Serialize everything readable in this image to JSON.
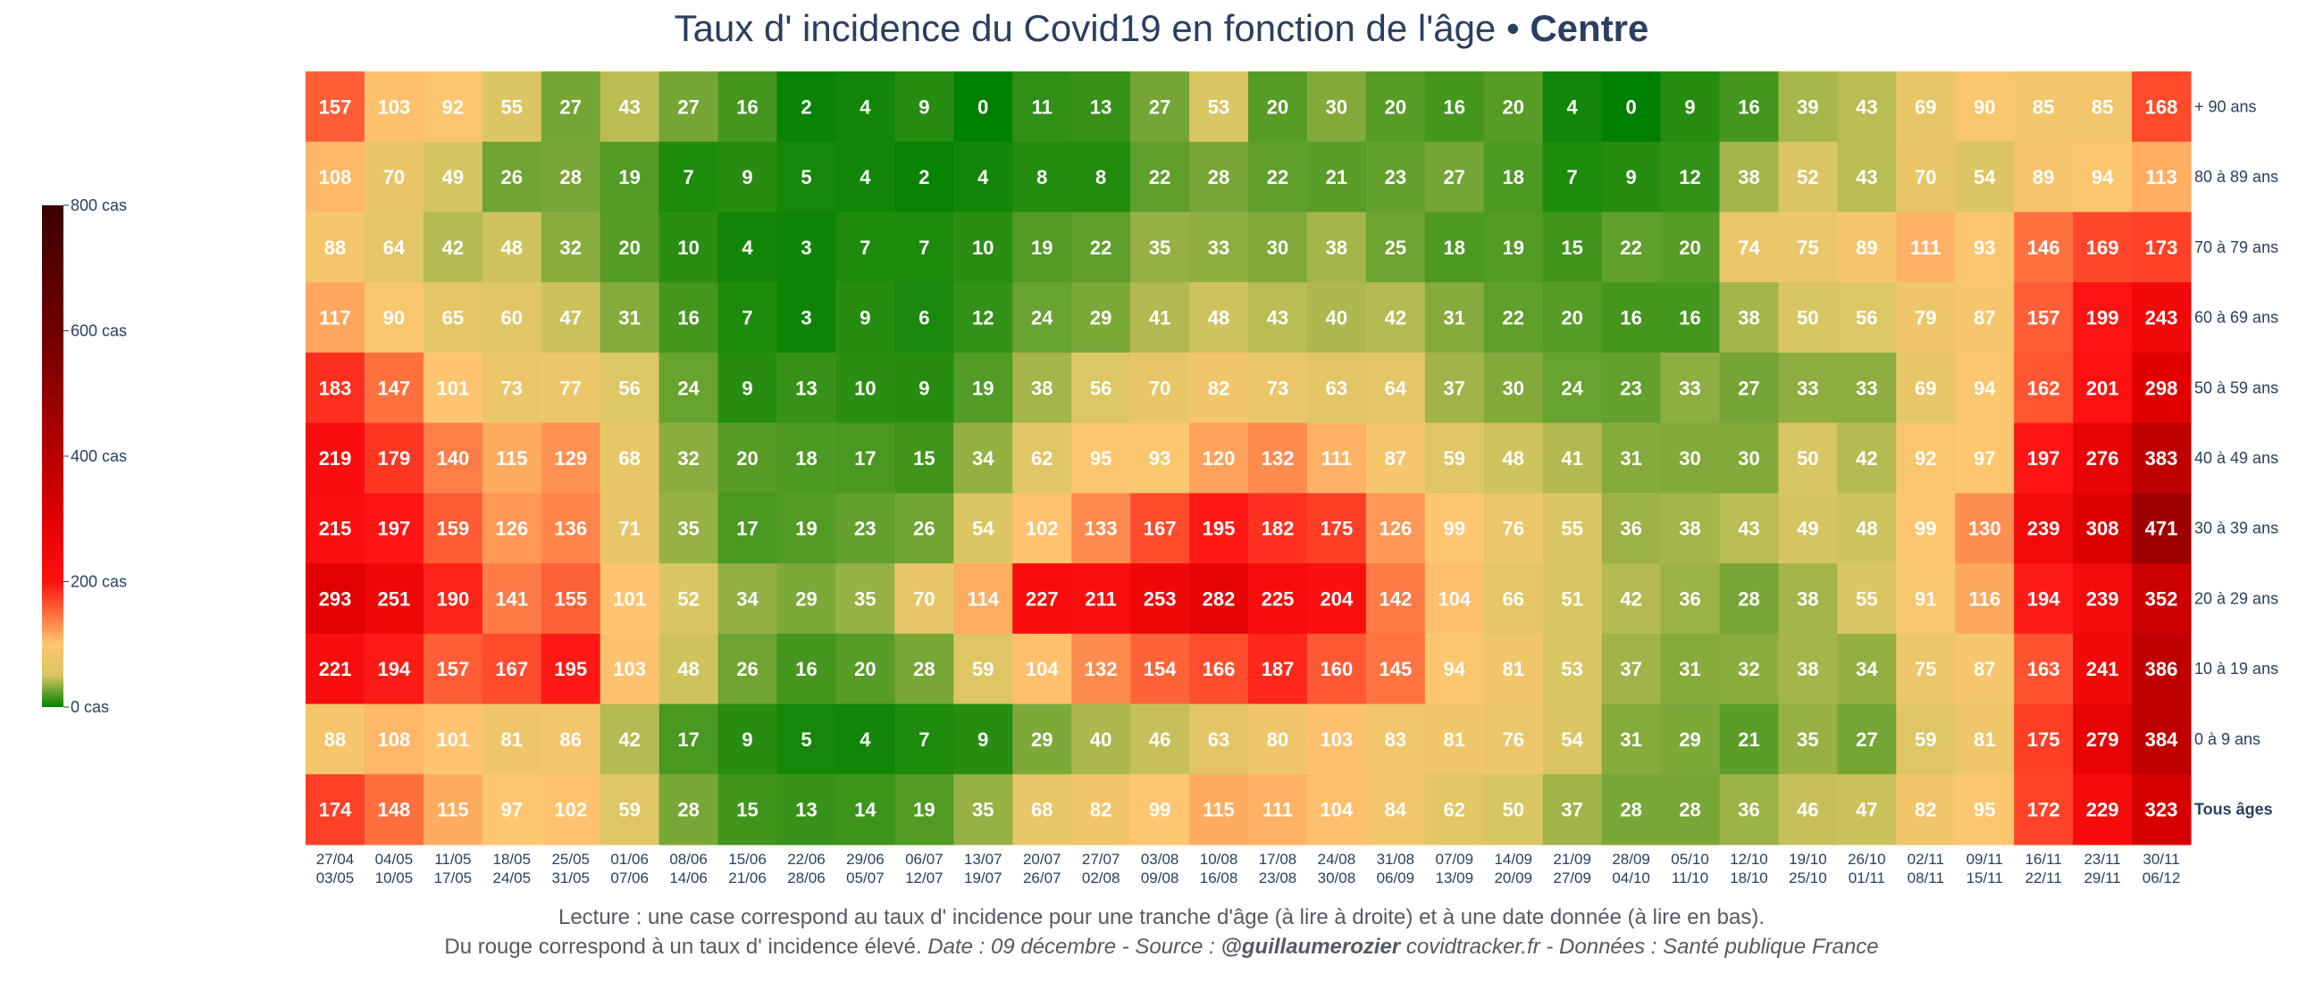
{
  "title": {
    "main": "Taux d' incidence du Covid19 en fonction de l'âge",
    "separator": " • ",
    "region": "Centre"
  },
  "footer": {
    "line1": "Lecture : une case correspond au taux d' incidence pour une tranche d'âge (à lire à droite) et à une date donnée (à lire en bas).",
    "line2_plain": "Du rouge correspond à un taux d' incidence élevé.  ",
    "line2_italic_a": "Date : 09 décembre - Source : ",
    "line2_bold_italic": "@guillaumerozier",
    "line2_italic_b": " covidtracker.fr - Données : Santé publique France"
  },
  "colorbar": {
    "labels": [
      "800 cas",
      "600 cas",
      "400 cas",
      "200 cas",
      "0 cas"
    ],
    "max": 800,
    "stops": [
      {
        "v": 0,
        "c": "#008000"
      },
      {
        "v": 50,
        "c": "#d8c662"
      },
      {
        "v": 100,
        "c": "#ffc670"
      },
      {
        "v": 150,
        "c": "#ff6b3c"
      },
      {
        "v": 200,
        "c": "#ff1010"
      },
      {
        "v": 300,
        "c": "#e00000"
      },
      {
        "v": 450,
        "c": "#a50000"
      },
      {
        "v": 600,
        "c": "#6e0000"
      },
      {
        "v": 800,
        "c": "#3a0000"
      }
    ]
  },
  "chart_data": {
    "type": "heatmap",
    "title": "Taux d' incidence du Covid19 en fonction de l'âge • Centre",
    "x": [
      "27/04\n03/05",
      "04/05\n10/05",
      "11/05\n17/05",
      "18/05\n24/05",
      "25/05\n31/05",
      "01/06\n07/06",
      "08/06\n14/06",
      "15/06\n21/06",
      "22/06\n28/06",
      "29/06\n05/07",
      "06/07\n12/07",
      "13/07\n19/07",
      "20/07\n26/07",
      "27/07\n02/08",
      "03/08\n09/08",
      "10/08\n16/08",
      "17/08\n23/08",
      "24/08\n30/08",
      "31/08\n06/09",
      "07/09\n13/09",
      "14/09\n20/09",
      "21/09\n27/09",
      "28/09\n04/10",
      "05/10\n11/10",
      "12/10\n18/10",
      "19/10\n25/10",
      "26/10\n01/11",
      "02/11\n08/11",
      "09/11\n15/11",
      "16/11\n22/11",
      "23/11\n29/11",
      "30/11\n06/12"
    ],
    "y": [
      "+ 90 ans",
      "80 à 89 ans",
      "70 à 79 ans",
      "60 à 69 ans",
      "50 à 59 ans",
      "40 à 49 ans",
      "30 à 39 ans",
      "20 à 29 ans",
      "10 à 19 ans",
      "0 à 9 ans",
      "Tous âges"
    ],
    "values": [
      [
        157,
        103,
        92,
        55,
        27,
        43,
        27,
        16,
        2,
        4,
        9,
        0,
        11,
        13,
        27,
        53,
        20,
        30,
        20,
        16,
        20,
        4,
        0,
        9,
        16,
        39,
        43,
        69,
        90,
        85,
        85,
        168
      ],
      [
        108,
        70,
        49,
        26,
        28,
        19,
        7,
        9,
        5,
        4,
        2,
        4,
        8,
        8,
        22,
        28,
        22,
        21,
        23,
        27,
        18,
        7,
        9,
        12,
        38,
        52,
        43,
        70,
        54,
        89,
        94,
        113
      ],
      [
        88,
        64,
        42,
        48,
        32,
        20,
        10,
        4,
        3,
        7,
        7,
        10,
        19,
        22,
        35,
        33,
        30,
        38,
        25,
        18,
        19,
        15,
        22,
        20,
        74,
        75,
        89,
        111,
        93,
        146,
        169,
        173
      ],
      [
        117,
        90,
        65,
        60,
        47,
        31,
        16,
        7,
        3,
        9,
        6,
        12,
        24,
        29,
        41,
        48,
        43,
        40,
        42,
        31,
        22,
        20,
        16,
        16,
        38,
        50,
        56,
        79,
        87,
        157,
        199,
        243
      ],
      [
        183,
        147,
        101,
        73,
        77,
        56,
        24,
        9,
        13,
        10,
        9,
        19,
        38,
        56,
        70,
        82,
        73,
        63,
        64,
        37,
        30,
        24,
        23,
        33,
        27,
        33,
        33,
        69,
        94,
        162,
        201,
        298
      ],
      [
        219,
        179,
        140,
        115,
        129,
        68,
        32,
        20,
        18,
        17,
        15,
        34,
        62,
        95,
        93,
        120,
        132,
        111,
        87,
        59,
        48,
        41,
        31,
        30,
        30,
        50,
        42,
        92,
        97,
        197,
        276,
        383
      ],
      [
        215,
        197,
        159,
        126,
        136,
        71,
        35,
        17,
        19,
        23,
        26,
        54,
        102,
        133,
        167,
        195,
        182,
        175,
        126,
        99,
        76,
        55,
        36,
        38,
        43,
        49,
        48,
        99,
        130,
        239,
        308,
        471
      ],
      [
        293,
        251,
        190,
        141,
        155,
        101,
        52,
        34,
        29,
        35,
        70,
        114,
        227,
        211,
        253,
        282,
        225,
        204,
        142,
        104,
        66,
        51,
        42,
        36,
        28,
        38,
        55,
        91,
        116,
        194,
        239,
        352
      ],
      [
        221,
        194,
        157,
        167,
        195,
        103,
        48,
        26,
        16,
        20,
        28,
        59,
        104,
        132,
        154,
        166,
        187,
        160,
        145,
        94,
        81,
        53,
        37,
        31,
        32,
        38,
        34,
        75,
        87,
        163,
        241,
        386
      ],
      [
        88,
        108,
        101,
        81,
        86,
        42,
        17,
        9,
        5,
        4,
        7,
        9,
        29,
        40,
        46,
        63,
        80,
        103,
        83,
        81,
        76,
        54,
        31,
        29,
        21,
        35,
        27,
        59,
        81,
        175,
        279,
        384
      ],
      [
        174,
        148,
        115,
        97,
        102,
        59,
        28,
        15,
        13,
        14,
        19,
        35,
        68,
        82,
        99,
        115,
        111,
        104,
        84,
        62,
        50,
        37,
        28,
        28,
        36,
        46,
        47,
        82,
        95,
        172,
        229,
        323
      ]
    ],
    "zlim": [
      0,
      800
    ],
    "colorbar_position": "left"
  }
}
